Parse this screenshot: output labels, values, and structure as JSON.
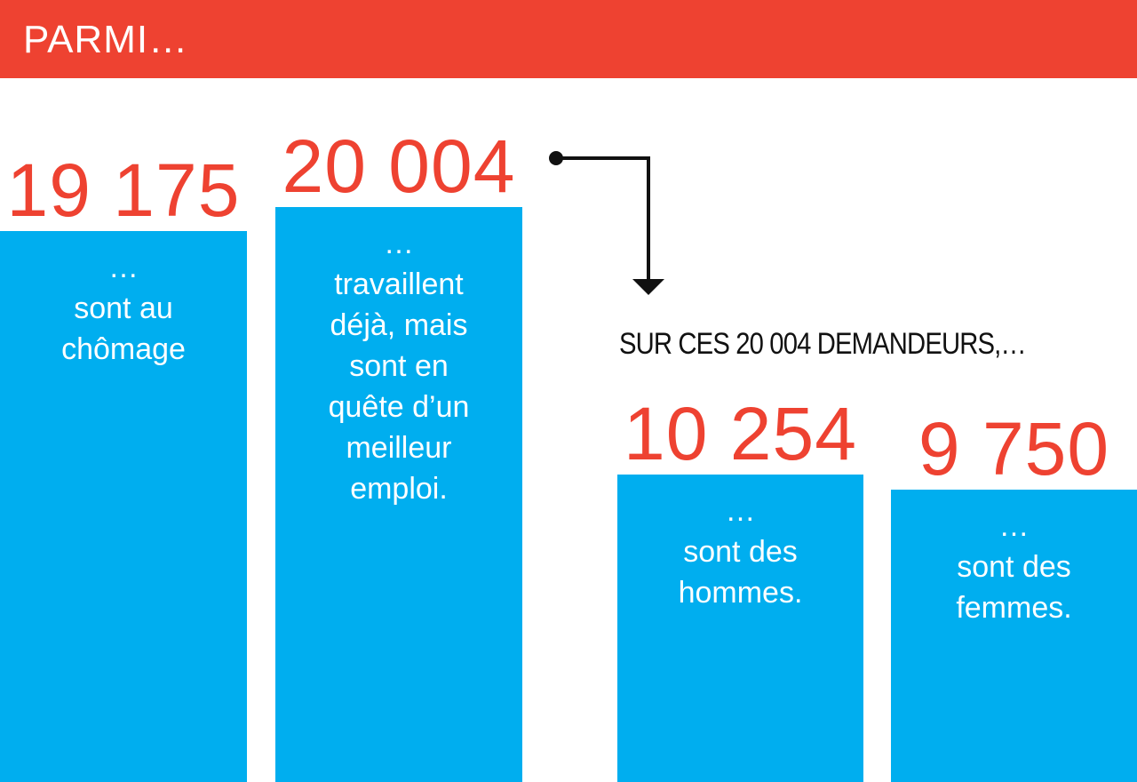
{
  "header": {
    "title": "PARMI…"
  },
  "subheading": "SUR CES 20 004 DEMANDEURS,…",
  "colors": {
    "header": "#EE4231",
    "bar": "#00AEEF",
    "value": "#EE4231"
  },
  "chart_data": {
    "type": "bar",
    "categories": [
      "… sont au chômage",
      "… travaillent déjà, mais sont en quête d’un meilleur emploi.",
      "… sont des hommes.",
      "… sont des femmes."
    ],
    "values": [
      19175,
      20004,
      10254,
      9750
    ],
    "value_labels": [
      "19 175",
      "20 004",
      "10 254",
      "9 750"
    ],
    "bar_labels": [
      "…\nsont au\nchômage",
      "…\ntravaillent\ndéjà, mais\nsont en\nquête d’un\nmeilleur\nemploi.",
      "…\nsont des\nhommes.",
      "…\nsont des\nfemmes."
    ],
    "annotation": "SUR CES 20 004 DEMANDEURS,…",
    "grid": false
  }
}
